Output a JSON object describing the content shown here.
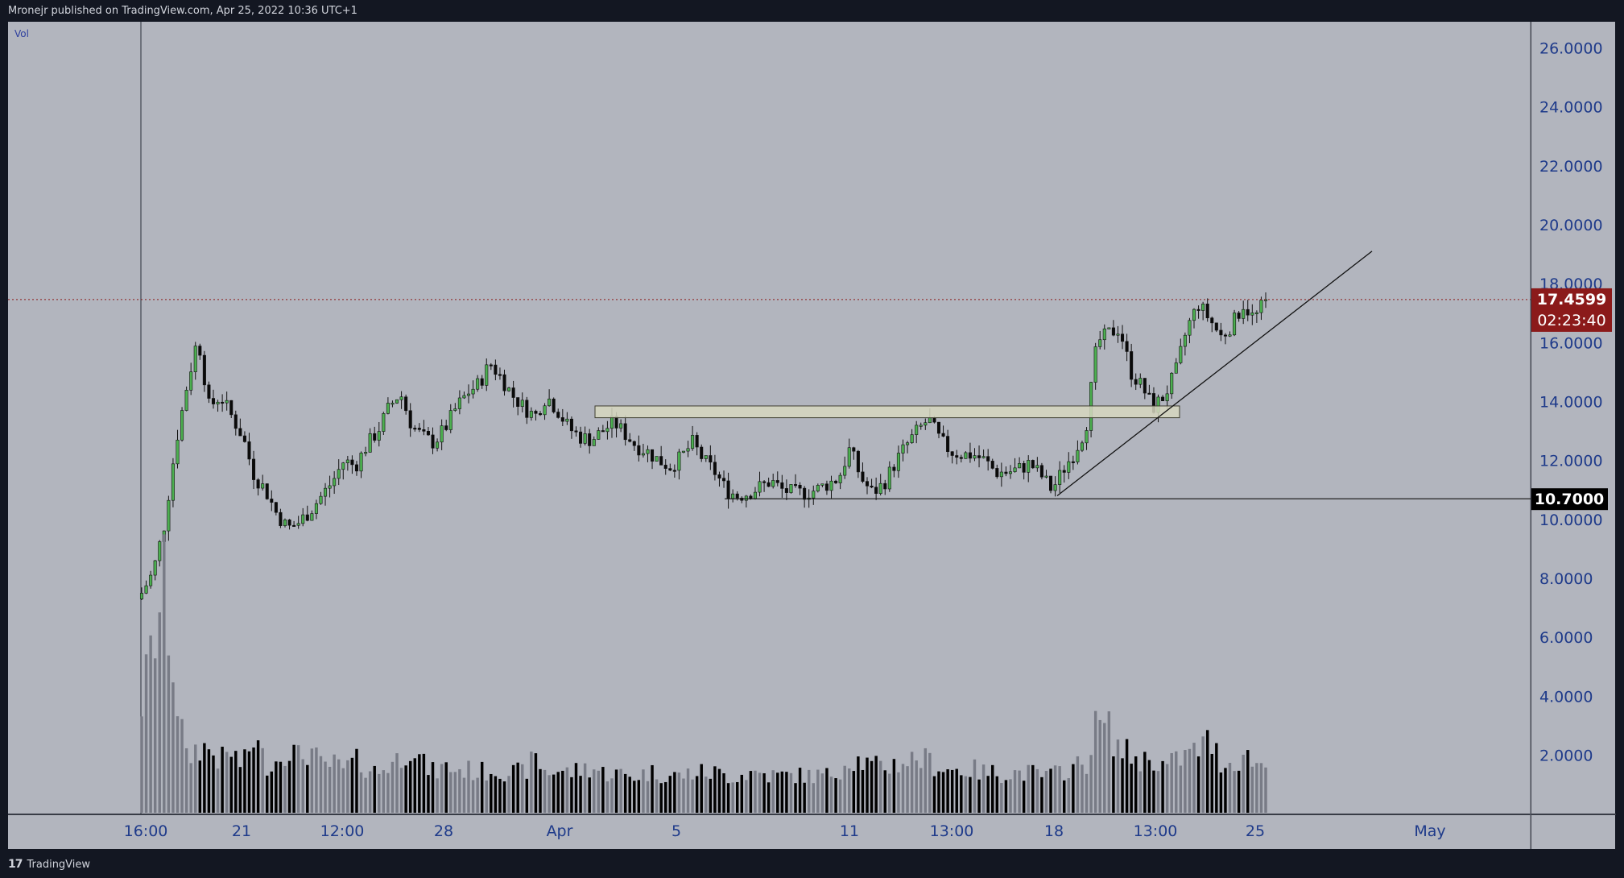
{
  "header": {
    "publisher_text": "Mronejr published on TradingView.com, Apr 25, 2022 10:36 UTC+1"
  },
  "footer": {
    "logo_mark": "17",
    "brand": "TradingView"
  },
  "colors": {
    "background": "#b2b5be",
    "frame": "#131722",
    "up_candle": "#4caf50",
    "down_candle": "#0a0a0a",
    "volume_up": "#787b86",
    "volume_down": "#000000",
    "last_price_tag": "#8b1a1a",
    "level_tag": "#000000",
    "zone_fill": "#d6d7bf",
    "axis_text": "#1e3a8a"
  },
  "chart_data": {
    "type": "candlestick",
    "volume_label": "Vol",
    "y_axis": {
      "range": [
        1.0,
        27.0
      ],
      "ticks": [
        "2.0000",
        "4.0000",
        "6.0000",
        "8.0000",
        "10.0000",
        "12.0000",
        "14.0000",
        "16.0000",
        "18.0000",
        "20.0000",
        "22.0000",
        "24.0000",
        "26.0000"
      ]
    },
    "x_axis": {
      "labels": [
        "16:00",
        "21",
        "12:00",
        "28",
        "Apr",
        "5",
        "11",
        "13:00",
        "18",
        "13:00",
        "25",
        "May"
      ]
    },
    "last_price": {
      "value": "17.4599",
      "countdown": "02:23:40"
    },
    "level_line": {
      "value": "10.7000"
    },
    "resistance_zone": {
      "low": 13.45,
      "high": 13.85
    },
    "trendline": {
      "from": 10.8,
      "to": 19.1
    },
    "price_anchors": [
      7.5,
      8.2,
      9.8,
      12.5,
      14.5,
      16.2,
      13.8,
      14.2,
      13.5,
      12.8,
      11.5,
      11.0,
      10.2,
      9.7,
      9.9,
      10.3,
      10.8,
      11.3,
      12.0,
      11.8,
      12.5,
      13.0,
      13.8,
      14.3,
      13.2,
      12.8,
      12.6,
      13.1,
      13.8,
      14.3,
      14.6,
      15.3,
      14.8,
      14.2,
      13.8,
      13.5,
      14.2,
      13.7,
      13.1,
      12.8,
      12.7,
      13.0,
      13.3,
      12.9,
      12.5,
      12.3,
      12.0,
      11.8,
      12.1,
      12.6,
      12.0,
      11.6,
      11.0,
      10.8,
      10.9,
      11.1,
      11.3,
      11.0,
      10.9,
      10.9,
      11.0,
      11.2,
      11.4,
      12.4,
      11.4,
      10.9,
      11.2,
      11.9,
      12.5,
      13.0,
      13.4,
      12.7,
      12.3,
      12.2,
      12.2,
      12.0,
      11.6,
      11.6,
      11.7,
      11.9,
      11.5,
      11.0,
      11.7,
      12.3,
      13.1,
      16.0,
      16.3,
      16.5,
      15.0,
      14.5,
      13.8,
      14.2,
      15.0,
      16.5,
      17.3,
      16.8,
      16.2,
      16.6,
      17.3,
      16.8,
      17.4599
    ],
    "volume_anchors": [
      3.8,
      5.7,
      7.7,
      4.3,
      1.8,
      2.3,
      2.2,
      1.8,
      2.1,
      1.6,
      2.6,
      1.7,
      1.8,
      2.3,
      1.9,
      2.2,
      1.6,
      1.7,
      1.5,
      1.8,
      1.6,
      1.4,
      1.7,
      1.9,
      2.4,
      1.7,
      1.4,
      1.6,
      1.5,
      1.5,
      1.4,
      1.5,
      1.5,
      1.4,
      1.4,
      1.9,
      1.4,
      1.5,
      1.4,
      1.5,
      1.6,
      1.4,
      1.4,
      1.3,
      1.3,
      1.4,
      1.4,
      1.3,
      1.3,
      1.4,
      1.4,
      1.4,
      1.3,
      1.3,
      1.4,
      1.4,
      1.3,
      1.3,
      1.3,
      1.3,
      1.3,
      1.3,
      1.5,
      1.9,
      1.8,
      1.6,
      1.6,
      1.7,
      1.8,
      1.9,
      1.8,
      1.6,
      1.5,
      1.5,
      1.5,
      1.4,
      1.4,
      1.4,
      1.4,
      1.4,
      1.3,
      1.3,
      1.5,
      1.6,
      1.7,
      3.1,
      2.9,
      2.2,
      2.0,
      1.8,
      1.9,
      1.6,
      1.8,
      2.0,
      2.2,
      2.5,
      1.8,
      1.7,
      2.0,
      1.8,
      1.6
    ]
  }
}
